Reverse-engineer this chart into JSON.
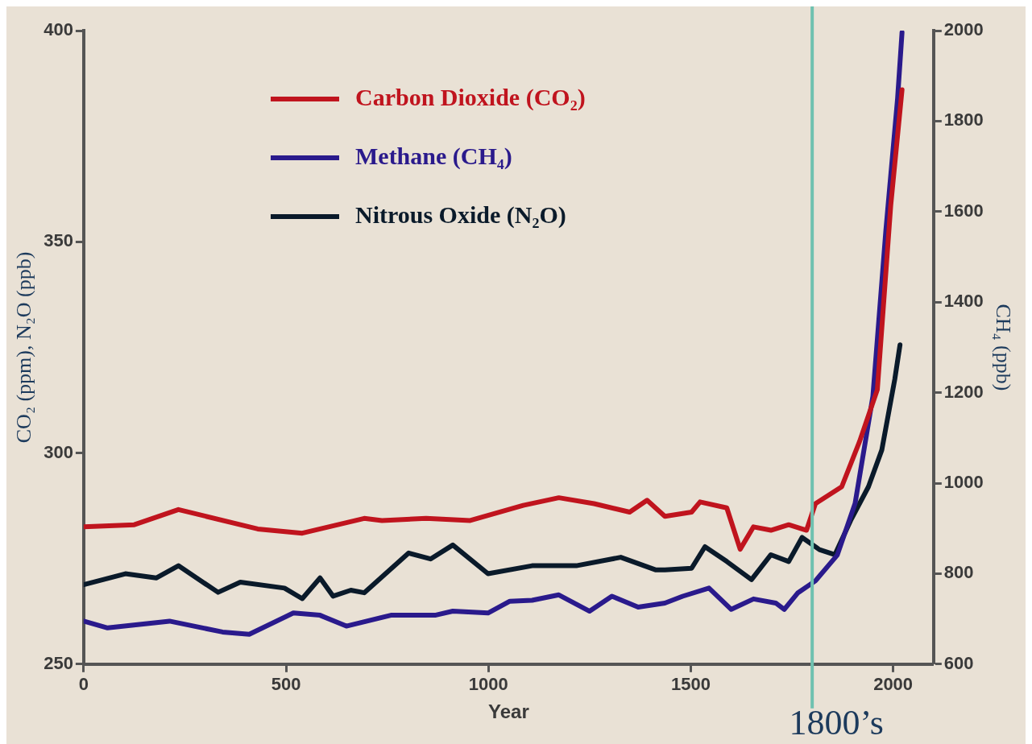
{
  "chart_data": {
    "type": "line",
    "xlabel": "Year",
    "ylabel": "CO₂ (ppm), N₂O (ppb)",
    "y2label": "CH₄ (ppb)",
    "xlim": [
      0,
      2100
    ],
    "xticks": [
      0,
      500,
      1000,
      1500,
      2000
    ],
    "ylim": [
      250,
      400
    ],
    "yticks": [
      250,
      300,
      350,
      400
    ],
    "y2lim": [
      600,
      2000
    ],
    "y2ticks": [
      600,
      800,
      1000,
      1200,
      1400,
      1600,
      1800,
      2000
    ],
    "grid": false,
    "legend": "top left",
    "marker": "none",
    "line_style": "solid",
    "series": [
      {
        "name": "Carbon Dioxide (CO₂)",
        "color": "#c0141e",
        "x": [
          0,
          125,
          234,
          430,
          540,
          605,
          693,
          737,
          846,
          955,
          1086,
          1174,
          1261,
          1349,
          1392,
          1436,
          1502,
          1523,
          1589,
          1622,
          1655,
          1698,
          1742,
          1786,
          1808,
          1873,
          1917,
          1961,
          1994,
          2022
        ],
        "values": [
          282.5,
          283,
          286.6,
          282,
          281,
          282.5,
          284.5,
          284,
          284.5,
          284,
          287.6,
          289.4,
          288,
          286,
          288.8,
          285,
          286,
          288.4,
          287,
          277.2,
          282.5,
          281.7,
          283,
          281.7,
          288,
          292,
          302.7,
          315,
          358.5,
          386
        ]
      },
      {
        "name": "Methane (CH₄)",
        "color": "#2a1a8c",
        "axis": "y2",
        "x": [
          0,
          59,
          212,
          343,
          409,
          518,
          584,
          649,
          759,
          868,
          912,
          999,
          1053,
          1108,
          1174,
          1250,
          1305,
          1370,
          1436,
          1480,
          1545,
          1600,
          1655,
          1710,
          1731,
          1764,
          1808,
          1862,
          1906,
          1950,
          1982,
          2011,
          2022
        ],
        "values": [
          695,
          680,
          695,
          671,
          666,
          713,
          708,
          684,
          708,
          708,
          717,
          713,
          739,
          741,
          753,
          717,
          750,
          726,
          735,
          750,
          768,
          721,
          744,
          735,
          721,
          757,
          784,
          841,
          955,
          1192,
          1558,
          1850,
          1996
        ]
      },
      {
        "name": "Nitrous Oxide (N₂O)",
        "color": "#0a1a2a",
        "x": [
          0,
          103,
          179,
          234,
          332,
          387,
          496,
          540,
          584,
          616,
          660,
          693,
          803,
          857,
          912,
          999,
          1108,
          1217,
          1327,
          1414,
          1436,
          1502,
          1535,
          1589,
          1650,
          1698,
          1742,
          1775,
          1818,
          1856,
          1895,
          1939,
          1972,
          2004,
          2017
        ],
        "values": [
          268.8,
          271.4,
          270.4,
          273.3,
          267,
          269.4,
          268,
          265.5,
          270.4,
          266.1,
          267.5,
          266.9,
          276.3,
          274.9,
          278.2,
          271.4,
          273.3,
          273.3,
          275.3,
          272.3,
          272.3,
          272.7,
          277.8,
          274.3,
          270,
          275.9,
          274.3,
          280,
          277.1,
          275.9,
          284,
          292,
          300.7,
          317.4,
          325.6
        ]
      }
    ],
    "ref_lines": [
      {
        "axis": "x",
        "value": 1800,
        "label": "1800’s",
        "color": "#6fc1b0"
      }
    ]
  }
}
